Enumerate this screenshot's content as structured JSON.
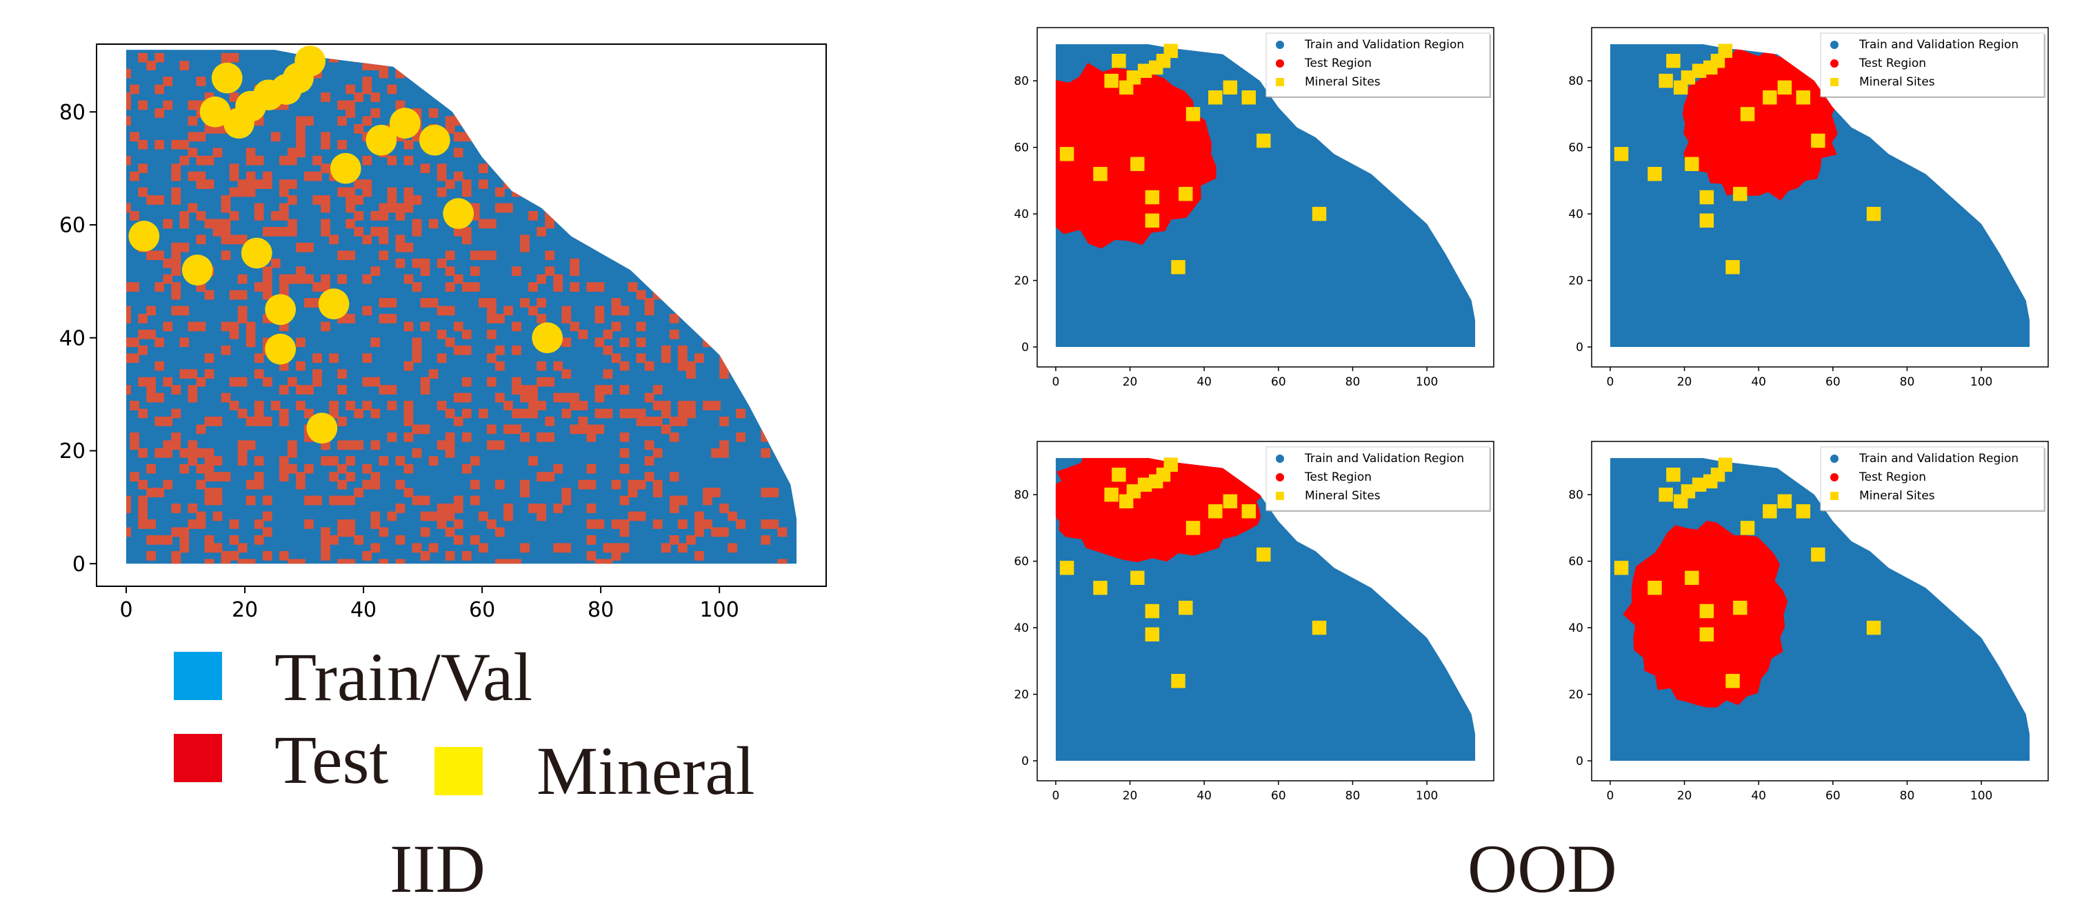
{
  "colors": {
    "train": "#1f77b4",
    "test_iid": "#d9533a",
    "test_ood": "#ff0000",
    "mineral": "#ffd700",
    "legend_train": "#00a0e9",
    "legend_test": "#e60012",
    "legend_mineral": "#fff100"
  },
  "big_legend": {
    "train": "Train/Val",
    "test": "Test",
    "mineral": "Mineral"
  },
  "captions": {
    "iid": "IID",
    "ood": "OOD"
  },
  "chart_data": [
    {
      "type": "scatter",
      "panel": "IID",
      "title": "",
      "xlabel": "",
      "ylabel": "",
      "xlim": [
        -5,
        118
      ],
      "ylim": [
        -4,
        92
      ],
      "xticks": [
        0,
        20,
        40,
        60,
        80,
        100
      ],
      "yticks": [
        0,
        20,
        40,
        60,
        80
      ],
      "grid": false,
      "legend": "",
      "region_boundary": [
        [
          0,
          91
        ],
        [
          25,
          91
        ],
        [
          30,
          90
        ],
        [
          45,
          88
        ],
        [
          55,
          80
        ],
        [
          60,
          72
        ],
        [
          65,
          66
        ],
        [
          70,
          63
        ],
        [
          75,
          58
        ],
        [
          80,
          55
        ],
        [
          85,
          52
        ],
        [
          90,
          47
        ],
        [
          95,
          42
        ],
        [
          100,
          37
        ],
        [
          105,
          28
        ],
        [
          108,
          22
        ],
        [
          110,
          18
        ],
        [
          112,
          14
        ],
        [
          113,
          8
        ],
        [
          113,
          0
        ],
        [
          0,
          0
        ]
      ],
      "test_split": "random interspersed grid cells",
      "mineral_sites": [
        [
          3,
          58
        ],
        [
          12,
          52
        ],
        [
          22,
          55
        ],
        [
          26,
          45
        ],
        [
          26,
          38
        ],
        [
          35,
          46
        ],
        [
          33,
          24
        ],
        [
          37,
          70
        ],
        [
          43,
          75
        ],
        [
          47,
          78
        ],
        [
          52,
          75
        ],
        [
          56,
          62
        ],
        [
          71,
          40
        ],
        [
          17,
          86
        ],
        [
          15,
          80
        ],
        [
          19,
          78
        ],
        [
          21,
          81
        ],
        [
          24,
          83
        ],
        [
          27,
          84
        ],
        [
          29,
          86
        ],
        [
          31,
          89
        ]
      ]
    },
    {
      "type": "scatter",
      "panel": "OOD-1",
      "title": "",
      "xlim": [
        -5,
        118
      ],
      "ylim": [
        -6,
        96
      ],
      "xticks": [
        0,
        20,
        40,
        60,
        80,
        100
      ],
      "yticks": [
        0,
        20,
        40,
        60,
        80
      ],
      "grid": false,
      "legend": "top-right",
      "series": [
        {
          "name": "Train and Validation Region",
          "values": "region"
        },
        {
          "name": "Test Region",
          "center": [
            16,
            58
          ],
          "radius": [
            28,
            28
          ]
        },
        {
          "name": "Mineral Sites",
          "values": [
            [
              3,
              58
            ],
            [
              12,
              52
            ],
            [
              22,
              55
            ],
            [
              26,
              45
            ],
            [
              26,
              38
            ],
            [
              35,
              46
            ],
            [
              33,
              24
            ],
            [
              37,
              70
            ],
            [
              43,
              75
            ],
            [
              47,
              78
            ],
            [
              52,
              75
            ],
            [
              56,
              62
            ],
            [
              71,
              40
            ],
            [
              17,
              86
            ],
            [
              15,
              80
            ],
            [
              19,
              78
            ],
            [
              21,
              81
            ],
            [
              24,
              83
            ],
            [
              27,
              84
            ],
            [
              29,
              86
            ],
            [
              31,
              89
            ]
          ]
        }
      ]
    },
    {
      "type": "scatter",
      "panel": "OOD-2",
      "title": "",
      "xlim": [
        -5,
        118
      ],
      "ylim": [
        -6,
        96
      ],
      "xticks": [
        0,
        20,
        40,
        60,
        80,
        100
      ],
      "yticks": [
        0,
        20,
        40,
        60,
        80
      ],
      "grid": false,
      "legend": "top-right",
      "series": [
        {
          "name": "Train and Validation Region",
          "values": "region"
        },
        {
          "name": "Test Region",
          "center": [
            40,
            67
          ],
          "radius": [
            22,
            23
          ]
        },
        {
          "name": "Mineral Sites",
          "values": [
            [
              3,
              58
            ],
            [
              12,
              52
            ],
            [
              22,
              55
            ],
            [
              26,
              45
            ],
            [
              26,
              38
            ],
            [
              35,
              46
            ],
            [
              33,
              24
            ],
            [
              37,
              70
            ],
            [
              43,
              75
            ],
            [
              47,
              78
            ],
            [
              52,
              75
            ],
            [
              56,
              62
            ],
            [
              71,
              40
            ],
            [
              17,
              86
            ],
            [
              15,
              80
            ],
            [
              19,
              78
            ],
            [
              21,
              81
            ],
            [
              24,
              83
            ],
            [
              27,
              84
            ],
            [
              29,
              86
            ],
            [
              31,
              89
            ]
          ]
        }
      ]
    },
    {
      "type": "scatter",
      "panel": "OOD-3",
      "title": "",
      "xlim": [
        -5,
        118
      ],
      "ylim": [
        -6,
        96
      ],
      "xticks": [
        0,
        20,
        40,
        60,
        80,
        100
      ],
      "yticks": [
        0,
        20,
        40,
        60,
        80
      ],
      "grid": false,
      "legend": "top-right",
      "series": [
        {
          "name": "Train and Validation Region",
          "values": "region"
        },
        {
          "name": "Test Region",
          "center": [
            26,
            78
          ],
          "radius": [
            30,
            18
          ]
        },
        {
          "name": "Mineral Sites",
          "values": [
            [
              3,
              58
            ],
            [
              12,
              52
            ],
            [
              22,
              55
            ],
            [
              26,
              45
            ],
            [
              26,
              38
            ],
            [
              35,
              46
            ],
            [
              33,
              24
            ],
            [
              37,
              70
            ],
            [
              43,
              75
            ],
            [
              47,
              78
            ],
            [
              52,
              75
            ],
            [
              56,
              62
            ],
            [
              71,
              40
            ],
            [
              17,
              86
            ],
            [
              15,
              80
            ],
            [
              19,
              78
            ],
            [
              21,
              81
            ],
            [
              24,
              83
            ],
            [
              27,
              84
            ],
            [
              29,
              86
            ],
            [
              31,
              89
            ]
          ]
        }
      ]
    },
    {
      "type": "scatter",
      "panel": "OOD-4",
      "title": "",
      "xlim": [
        -5,
        118
      ],
      "ylim": [
        -6,
        96
      ],
      "xticks": [
        0,
        20,
        40,
        60,
        80,
        100
      ],
      "yticks": [
        0,
        20,
        40,
        60,
        80
      ],
      "grid": false,
      "legend": "top-right",
      "series": [
        {
          "name": "Train and Validation Region",
          "values": "region"
        },
        {
          "name": "Test Region",
          "center": [
            26,
            44
          ],
          "radius": [
            22,
            29
          ]
        },
        {
          "name": "Mineral Sites",
          "values": [
            [
              3,
              58
            ],
            [
              12,
              52
            ],
            [
              22,
              55
            ],
            [
              26,
              45
            ],
            [
              26,
              38
            ],
            [
              35,
              46
            ],
            [
              33,
              24
            ],
            [
              37,
              70
            ],
            [
              43,
              75
            ],
            [
              47,
              78
            ],
            [
              52,
              75
            ],
            [
              56,
              62
            ],
            [
              71,
              40
            ],
            [
              17,
              86
            ],
            [
              15,
              80
            ],
            [
              19,
              78
            ],
            [
              21,
              81
            ],
            [
              24,
              83
            ],
            [
              27,
              84
            ],
            [
              29,
              86
            ],
            [
              31,
              89
            ]
          ]
        }
      ]
    }
  ]
}
